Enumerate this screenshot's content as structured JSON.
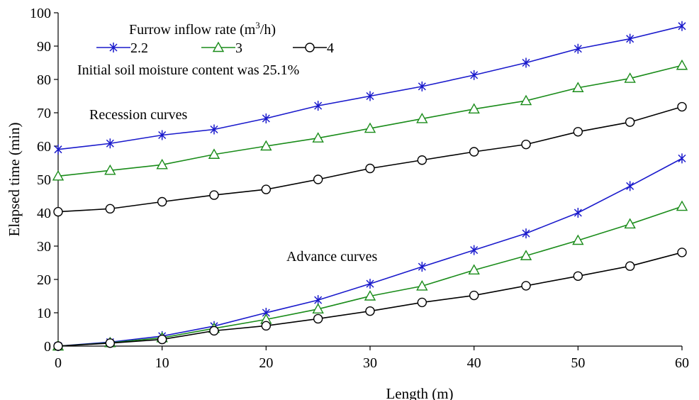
{
  "chart_data": {
    "type": "line",
    "xlabel": "Length (m)",
    "ylabel": "Elapsed time (min)",
    "xlim": [
      0,
      60
    ],
    "ylim": [
      0,
      100
    ],
    "x_ticks": [
      "0",
      "10",
      "20",
      "30",
      "40",
      "50",
      "60"
    ],
    "y_ticks": [
      "0",
      "10",
      "20",
      "30",
      "40",
      "50",
      "60",
      "70",
      "80",
      "90",
      "100"
    ],
    "grid": false,
    "legend": {
      "title_main": "Furrow inflow rate (m",
      "title_sup": "3",
      "title_end": "/h)",
      "placement": "top-left"
    },
    "annotations": {
      "moisture": "Initial soil moisture content was 25.1%",
      "recession": "Recession curves",
      "advance": "Advance curves"
    },
    "x": [
      0,
      5,
      10,
      15,
      20,
      25,
      30,
      35,
      40,
      45,
      50,
      55,
      60
    ],
    "series": [
      {
        "name": "2.2",
        "color": "#1a1acc",
        "marker": "asterisk",
        "recession": [
          59,
          60.8,
          63.3,
          65,
          68.3,
          72.1,
          75,
          77.9,
          81.3,
          85,
          89.2,
          92.2,
          96
        ],
        "advance": [
          0,
          1.2,
          3,
          6,
          10,
          13.8,
          18.7,
          23.8,
          28.8,
          33.8,
          40,
          48,
          56.3
        ]
      },
      {
        "name": "3",
        "color": "#1a8c1a",
        "marker": "triangle",
        "recession": [
          51,
          52.7,
          54.4,
          57.5,
          60,
          62.4,
          65.3,
          68.2,
          71.1,
          73.6,
          77.5,
          80.3,
          84.2
        ],
        "advance": [
          0,
          1,
          2.5,
          5.3,
          8,
          11.1,
          15,
          18,
          22.8,
          27.1,
          31.7,
          36.6,
          41.9
        ]
      },
      {
        "name": "4",
        "color": "#000000",
        "marker": "circle",
        "recession": [
          40.3,
          41.2,
          43.3,
          45.3,
          47,
          50,
          53.3,
          55.8,
          58.3,
          60.5,
          64.3,
          67.2,
          71.8
        ],
        "advance": [
          0,
          0.9,
          2,
          4.6,
          6.1,
          8.2,
          10.5,
          13.1,
          15.2,
          18.1,
          21,
          24,
          28.1
        ]
      }
    ]
  }
}
